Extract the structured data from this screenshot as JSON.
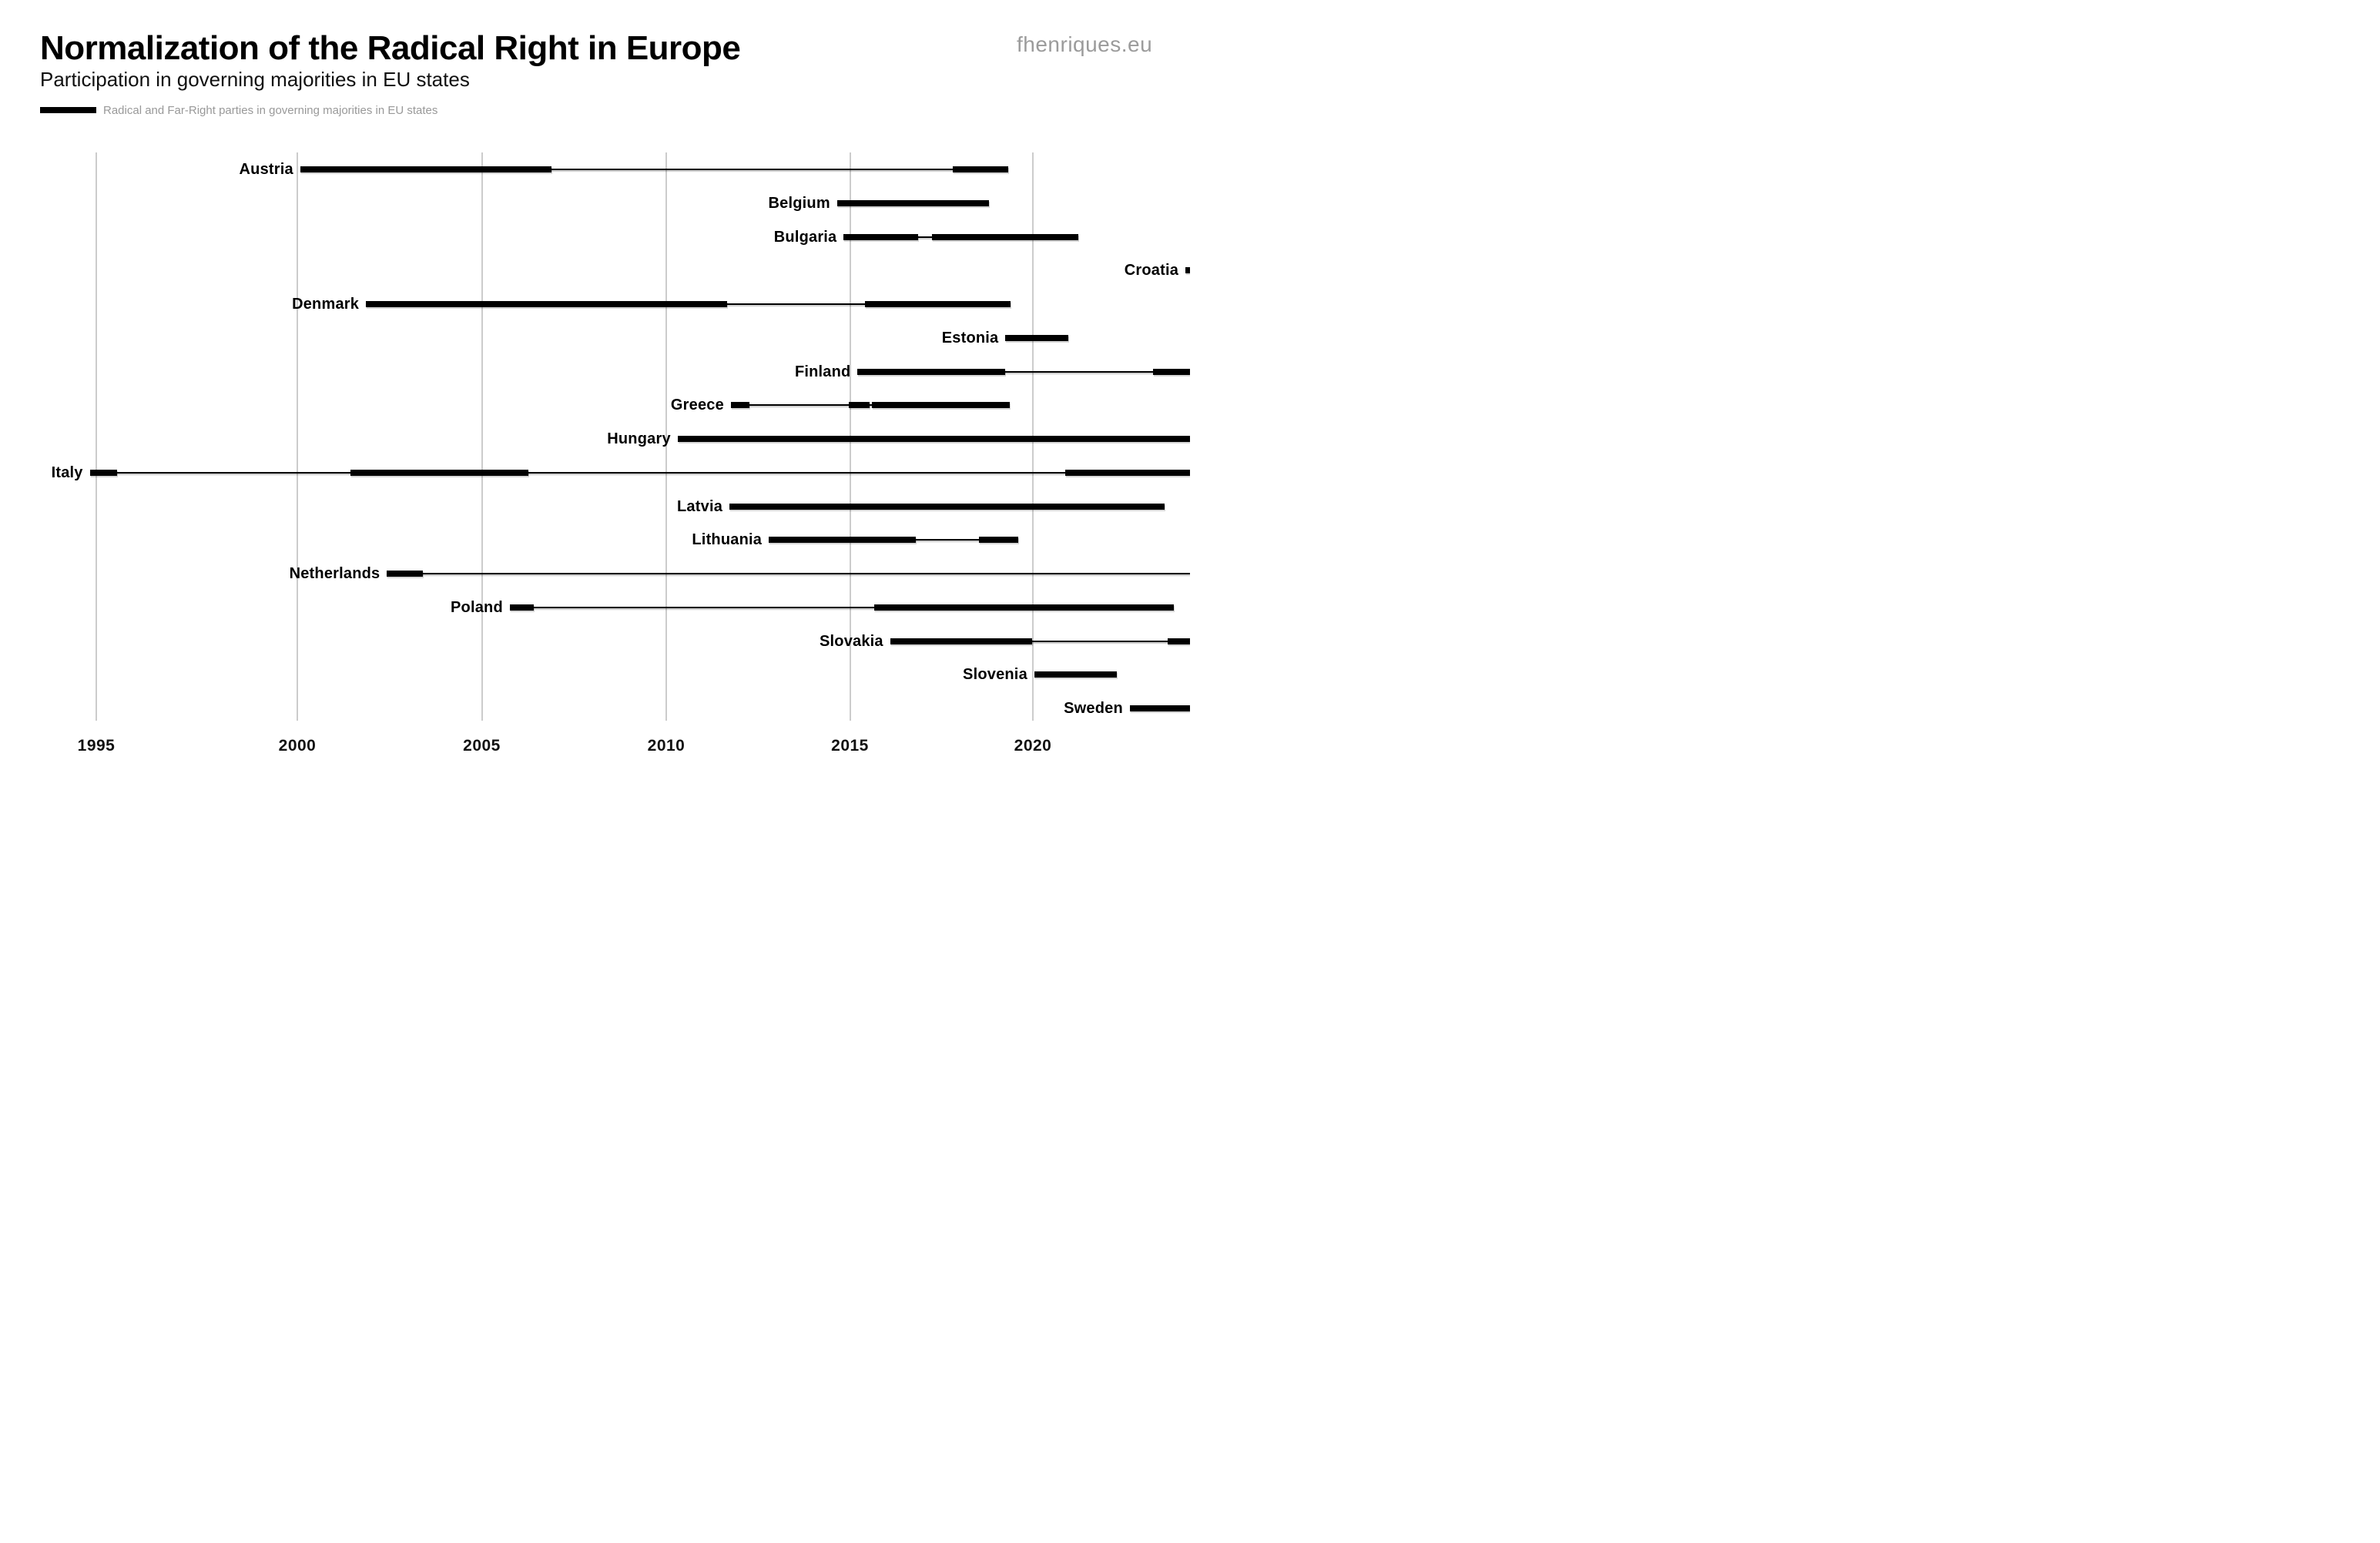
{
  "header": {
    "title": "Normalization of the Radical Right in Europe",
    "subtitle": "Participation in governing majorities in EU states",
    "watermark": "fhenriques.eu"
  },
  "legend": {
    "label": "Radical and Far-Right parties in governing majorities in EU states",
    "swatch_color": "#000000"
  },
  "colors": {
    "bar": "#000000",
    "connector": "#000000",
    "gridline": "#cccccc",
    "legend_text": "#999999",
    "watermark": "#9b9b9b",
    "tick_label": "#111111",
    "background": "#ffffff"
  },
  "chart_data": {
    "type": "bar",
    "subtype": "gantt-timeline",
    "title": "Normalization of the Radical Right in Europe",
    "subtitle": "Participation in governing majorities in EU states",
    "xlabel": "",
    "ylabel": "",
    "x_ticks": [
      1995,
      2000,
      2005,
      2010,
      2015,
      2020
    ],
    "x_visible_range": [
      1993.6,
      2024.3
    ],
    "grid": "vertical-only",
    "legend_position": "top-left",
    "bar_unit": "years in governing majority",
    "rows": [
      {
        "country": "Austria",
        "segments": [
          [
            2000.08,
            2006.88
          ],
          [
            2017.8,
            2019.32
          ]
        ],
        "line": [
          2000.08,
          2019.32
        ]
      },
      {
        "country": "Belgium",
        "segments": [
          [
            2014.65,
            2018.8
          ]
        ],
        "line": null
      },
      {
        "country": "Bulgaria",
        "segments": [
          [
            2014.83,
            2016.86
          ],
          [
            2017.24,
            2021.24
          ]
        ],
        "line": [
          2014.83,
          2021.24
        ]
      },
      {
        "country": "Croatia",
        "segments": [
          [
            2024.17,
            null
          ]
        ],
        "line": null
      },
      {
        "country": "Denmark",
        "segments": [
          [
            2001.86,
            2011.66
          ],
          [
            2015.41,
            2019.4
          ]
        ],
        "line": [
          2001.86,
          2019.4
        ]
      },
      {
        "country": "Estonia",
        "segments": [
          [
            2019.25,
            2020.97
          ]
        ],
        "line": null
      },
      {
        "country": "Finland",
        "segments": [
          [
            2015.21,
            2019.25
          ],
          [
            2023.29,
            null
          ]
        ],
        "line": [
          2015.21,
          null
        ]
      },
      {
        "country": "Greece",
        "segments": [
          [
            2011.76,
            2012.27
          ],
          [
            2014.96,
            2015.54
          ],
          [
            2015.61,
            2019.36
          ]
        ],
        "line": [
          2011.76,
          2019.36
        ]
      },
      {
        "country": "Hungary",
        "segments": [
          [
            2010.31,
            null
          ]
        ],
        "line": null
      },
      {
        "country": "Italy",
        "segments": [
          [
            1994.84,
            1995.51
          ],
          [
            2001.44,
            2006.27
          ],
          [
            2020.89,
            null
          ]
        ],
        "line": [
          1994.84,
          null
        ]
      },
      {
        "country": "Latvia",
        "segments": [
          [
            2011.72,
            2023.59
          ]
        ],
        "line": null
      },
      {
        "country": "Lithuania",
        "segments": [
          [
            2012.79,
            2016.81
          ],
          [
            2018.53,
            2019.61
          ]
        ],
        "line": [
          2012.79,
          2019.61
        ]
      },
      {
        "country": "Netherlands",
        "segments": [
          [
            2002.43,
            2003.4
          ]
        ],
        "line": [
          2002.43,
          null
        ]
      },
      {
        "country": "Poland",
        "segments": [
          [
            2005.76,
            2006.4
          ],
          [
            2015.66,
            2023.86
          ]
        ],
        "line": [
          2005.76,
          2023.86
        ]
      },
      {
        "country": "Slovakia",
        "segments": [
          [
            2016.1,
            2019.98
          ],
          [
            2023.68,
            null
          ]
        ],
        "line": [
          2016.1,
          null
        ]
      },
      {
        "country": "Slovenia",
        "segments": [
          [
            2020.04,
            2022.3
          ]
        ],
        "line": null
      },
      {
        "country": "Sweden",
        "segments": [
          [
            2022.65,
            null
          ]
        ],
        "line": null
      }
    ]
  }
}
